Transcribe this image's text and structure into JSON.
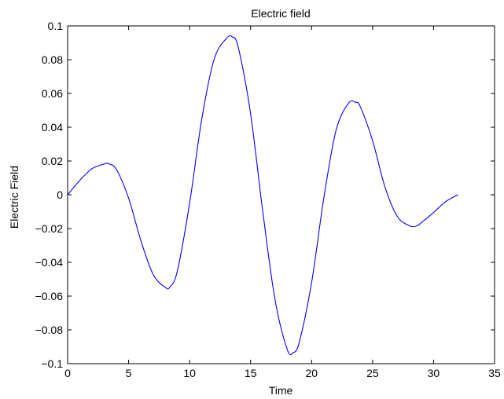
{
  "chart_data": {
    "type": "line",
    "title": "Electric field",
    "xlabel": "Time",
    "ylabel": "Electric Field",
    "xlim": [
      0,
      35
    ],
    "ylim": [
      -0.1,
      0.1
    ],
    "x_ticks": [
      0,
      5,
      10,
      15,
      20,
      25,
      30,
      35
    ],
    "x_tick_labels": [
      "0",
      "5",
      "10",
      "15",
      "20",
      "25",
      "30",
      "35"
    ],
    "y_ticks": [
      -0.1,
      -0.08,
      -0.06,
      -0.04,
      -0.02,
      0,
      0.02,
      0.04,
      0.06,
      0.08,
      0.1
    ],
    "y_tick_labels": [
      "−0.1",
      "−0.08",
      "−0.06",
      "−0.04",
      "−0.02",
      "0",
      "0.02",
      "0.04",
      "0.06",
      "0.08",
      "0.1"
    ],
    "grid": false,
    "line_color": "#0000ff",
    "series": [
      {
        "x": [
          0,
          1,
          2,
          3,
          3.3,
          4,
          5,
          6,
          7,
          8,
          8.4,
          9,
          10,
          11,
          12,
          13,
          13.5,
          14,
          15,
          16,
          17,
          18,
          18.5,
          19,
          20,
          21,
          22,
          23,
          23.6,
          24,
          25,
          26,
          27,
          28,
          28.6,
          29,
          30,
          31,
          32
        ],
        "y": [
          0,
          0.0085,
          0.0155,
          0.0182,
          0.0185,
          0.015,
          -0.002,
          -0.027,
          -0.047,
          -0.0548,
          -0.0545,
          -0.045,
          -0.005,
          0.045,
          0.08,
          0.0925,
          0.0935,
          0.087,
          0.048,
          -0.01,
          -0.062,
          -0.0915,
          -0.0935,
          -0.087,
          -0.052,
          -0.002,
          0.038,
          0.054,
          0.0548,
          0.052,
          0.032,
          0.005,
          -0.0125,
          -0.0183,
          -0.0185,
          -0.0165,
          -0.0105,
          -0.004,
          0
        ]
      }
    ]
  }
}
